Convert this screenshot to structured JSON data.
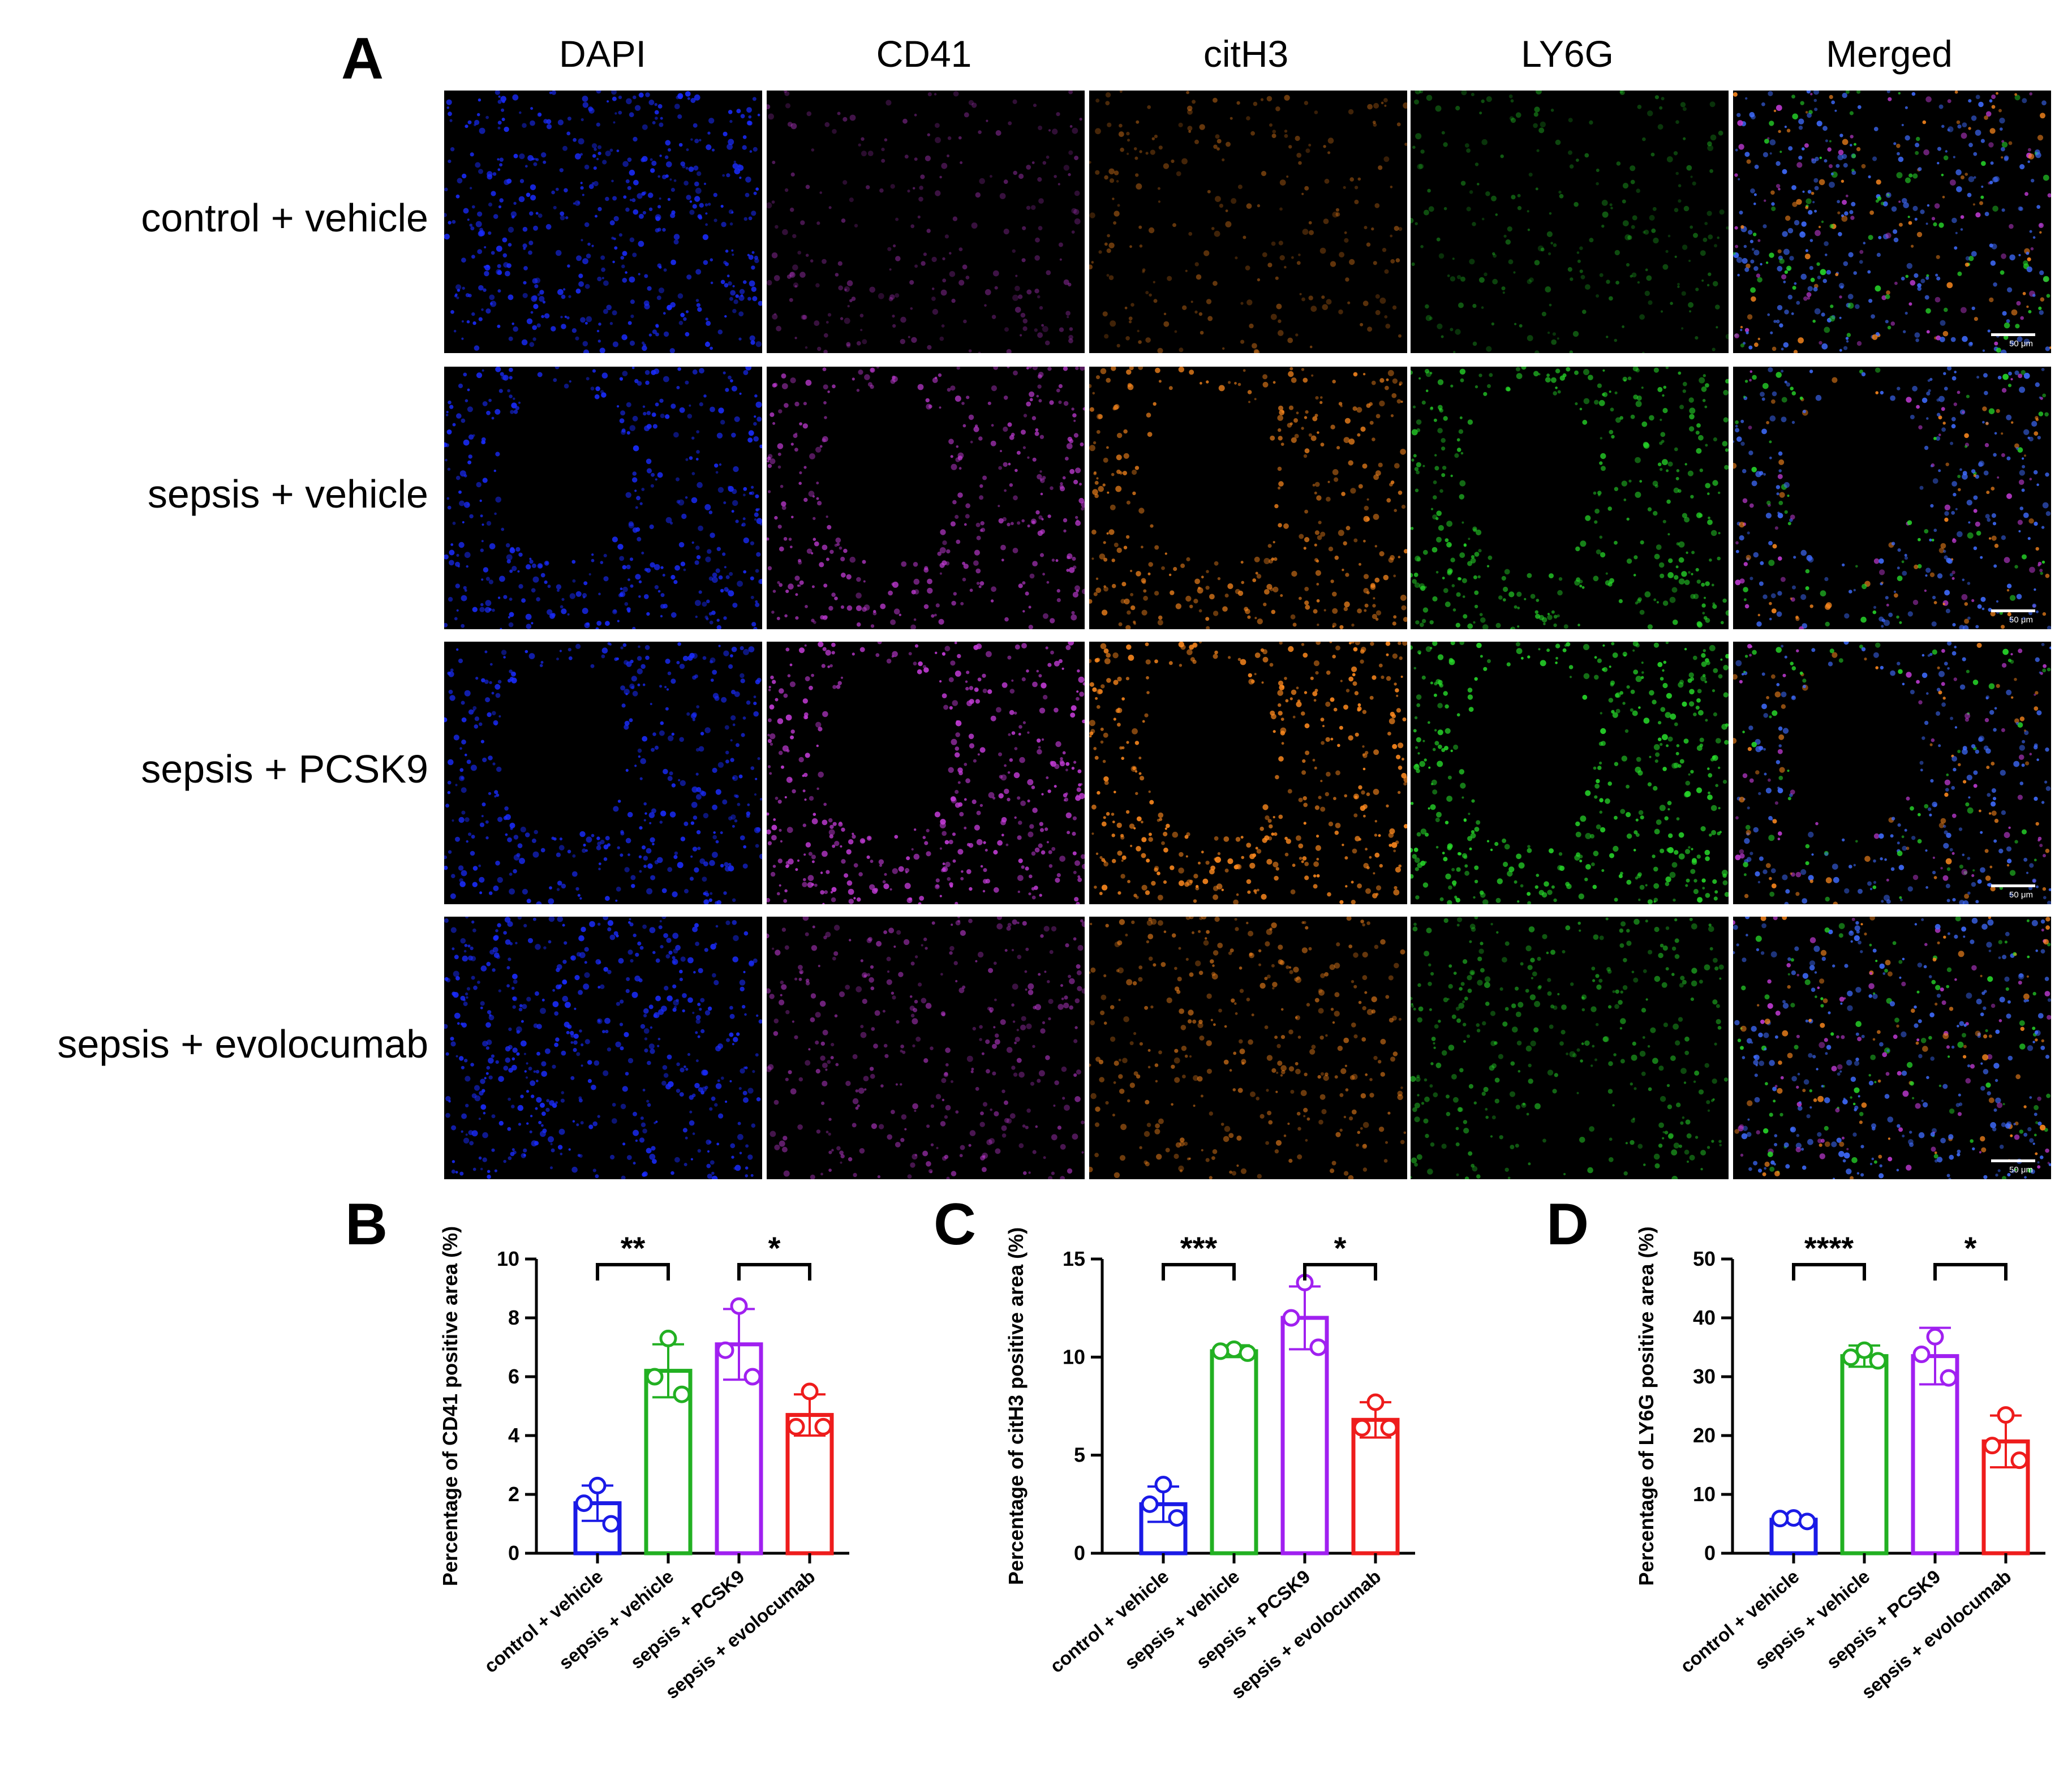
{
  "panel_labels": {
    "a": "A",
    "b": "B",
    "c": "C",
    "d": "D"
  },
  "micrograph": {
    "channels": [
      {
        "name": "DAPI",
        "color": "#1a2cff"
      },
      {
        "name": "CD41",
        "color": "#c23bd6"
      },
      {
        "name": "citH3",
        "color": "#ff8a1e"
      },
      {
        "name": "LY6G",
        "color": "#27d92a"
      },
      {
        "name": "Merged",
        "color": "#3f6cff"
      }
    ],
    "rows": [
      {
        "label": "control + vehicle",
        "intensity": 0.25,
        "lumen": false
      },
      {
        "label": "sepsis + vehicle",
        "intensity": 0.75,
        "lumen": true
      },
      {
        "label": "sepsis + PCSK9",
        "intensity": 0.95,
        "lumen": true
      },
      {
        "label": "sepsis + evolocumab",
        "intensity": 0.5,
        "lumen": false
      }
    ],
    "scale_bar_label": "50 μm"
  },
  "chart_data": [
    {
      "panel": "B",
      "type": "bar",
      "categories": [
        "control + vehicle",
        "sepsis + vehicle",
        "sepsis + PCSK9",
        "sepsis + evolocumab"
      ],
      "values": [
        1.7,
        6.2,
        7.1,
        4.7
      ],
      "errors": [
        0.6,
        0.9,
        1.2,
        0.7
      ],
      "points": [
        [
          2.3,
          1.7,
          1.0
        ],
        [
          7.3,
          6.0,
          5.4
        ],
        [
          8.4,
          6.9,
          6.0
        ],
        [
          5.5,
          4.3,
          4.3
        ]
      ],
      "ylabel": "Percentage of CD41 positive area (%)",
      "ylim": [
        0,
        10
      ],
      "yticks": [
        0,
        2,
        4,
        6,
        8,
        10
      ],
      "significance": [
        {
          "from": 0,
          "to": 1,
          "label": "**"
        },
        {
          "from": 2,
          "to": 3,
          "label": "*"
        }
      ]
    },
    {
      "panel": "C",
      "type": "bar",
      "categories": [
        "control + vehicle",
        "sepsis + vehicle",
        "sepsis + PCSK9",
        "sepsis + evolocumab"
      ],
      "values": [
        2.5,
        10.3,
        12.0,
        6.8
      ],
      "errors": [
        0.9,
        0.3,
        1.6,
        0.9
      ],
      "points": [
        [
          3.5,
          2.5,
          1.8
        ],
        [
          10.4,
          10.3,
          10.2
        ],
        [
          13.8,
          12.0,
          10.5
        ],
        [
          7.7,
          6.4,
          6.4
        ]
      ],
      "ylabel": "Percentage of citH3 positive area (%)",
      "ylim": [
        0,
        15
      ],
      "yticks": [
        0,
        5,
        10,
        15
      ],
      "significance": [
        {
          "from": 0,
          "to": 1,
          "label": "***"
        },
        {
          "from": 2,
          "to": 3,
          "label": "*"
        }
      ]
    },
    {
      "panel": "D",
      "type": "bar",
      "categories": [
        "control + vehicle",
        "sepsis + vehicle",
        "sepsis + PCSK9",
        "sepsis + evolocumab"
      ],
      "values": [
        5.7,
        33.5,
        33.5,
        19.0
      ],
      "errors": [
        0.4,
        1.8,
        4.8,
        4.4
      ],
      "points": [
        [
          6.0,
          5.9,
          5.4
        ],
        [
          34.5,
          33.3,
          32.7
        ],
        [
          36.8,
          33.8,
          29.8
        ],
        [
          23.5,
          18.3,
          15.8
        ]
      ],
      "ylabel": "Percentage of LY6G positive area (%)",
      "ylim": [
        0,
        50
      ],
      "yticks": [
        0,
        10,
        20,
        30,
        40,
        50
      ],
      "significance": [
        {
          "from": 0,
          "to": 1,
          "label": "****"
        },
        {
          "from": 2,
          "to": 3,
          "label": "*"
        }
      ]
    }
  ],
  "group_colors": [
    "#1a1ae6",
    "#22b022",
    "#a020f0",
    "#ee1c1c"
  ]
}
